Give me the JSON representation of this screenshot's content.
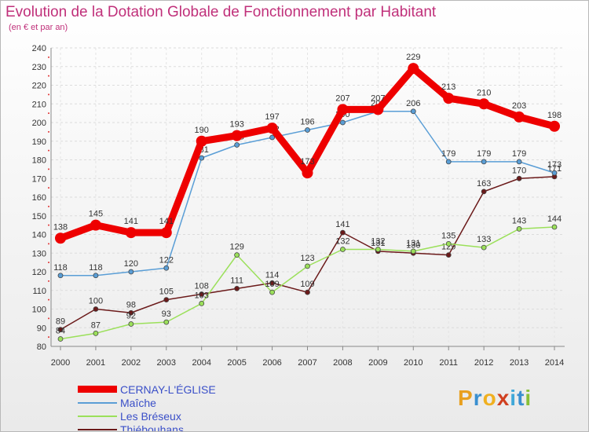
{
  "chart_data": {
    "type": "line",
    "title": "Evolution de la Dotation Globale de Fonctionnement par Habitant",
    "subtitle": "(en € et par an)",
    "xlabel": "",
    "ylabel": "",
    "categories": [
      "2000",
      "2001",
      "2002",
      "2003",
      "2004",
      "2005",
      "2006",
      "2007",
      "2008",
      "2009",
      "2010",
      "2011",
      "2012",
      "2013",
      "2014"
    ],
    "ylim": [
      80,
      240
    ],
    "yticks": [
      80,
      90,
      100,
      110,
      120,
      130,
      140,
      150,
      160,
      170,
      180,
      190,
      200,
      210,
      220,
      230,
      240
    ],
    "series": [
      {
        "name": "Thiébouhans",
        "color": "#6b1a1a",
        "values": [
          89,
          100,
          98,
          105,
          108,
          111,
          114,
          109,
          141,
          131,
          130,
          129,
          163,
          170,
          171
        ],
        "labels": true
      },
      {
        "name": "Les Bréseux",
        "color": "#9be05a",
        "values": [
          84,
          87,
          92,
          93,
          103,
          129,
          109,
          123,
          132,
          132,
          131,
          135,
          133,
          143,
          144
        ],
        "labels": true
      },
      {
        "name": "Maîche",
        "color": "#5a9ed6",
        "values": [
          118,
          118,
          120,
          122,
          181,
          188,
          192,
          196,
          200,
          206,
          206,
          179,
          179,
          179,
          173
        ],
        "labels": true
      },
      {
        "name": "CERNAY-L'ÉGLISE",
        "color": "#ee0000",
        "values": [
          138,
          145,
          141,
          141,
          190,
          193,
          197,
          173,
          207,
          207,
          229,
          213,
          210,
          203,
          198
        ],
        "labels": true
      }
    ],
    "legend_order": [
      "CERNAY-L'ÉGLISE",
      "Maîche",
      "Les Bréseux",
      "Thiébouhans"
    ],
    "legend_position": "bottom-left"
  },
  "brand": {
    "p": "P",
    "r": "r",
    "o": "o",
    "x": "x",
    "i": "i",
    "t": "t",
    "i2": "i"
  }
}
